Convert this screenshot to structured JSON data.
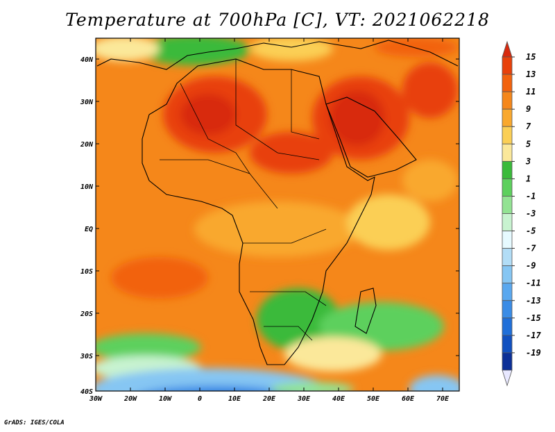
{
  "title": "Temperature at 700hPa [C], VT: 2021062218",
  "credit": "GrADS: IGES/COLA",
  "map": {
    "lon_labels": [
      "30W",
      "20W",
      "10W",
      "0",
      "10E",
      "20E",
      "30E",
      "40E",
      "50E",
      "60E",
      "70E"
    ],
    "lat_labels": [
      "40N",
      "30N",
      "20N",
      "10N",
      "EQ",
      "10S",
      "20S",
      "30S",
      "40S"
    ]
  },
  "colorbar": {
    "labels": [
      "15",
      "13",
      "11",
      "9",
      "7",
      "5",
      "3",
      "1",
      "-1",
      "-3",
      "-5",
      "-7",
      "-9",
      "-11",
      "-13",
      "-15",
      "-17",
      "-19"
    ],
    "colors": [
      "#d82a0e",
      "#e8410a",
      "#f2620d",
      "#f5871a",
      "#f9a82d",
      "#fbcf55",
      "#fbe89a",
      "#3aba3a",
      "#5dd05d",
      "#93e393",
      "#c8f3d0",
      "#e6faff",
      "#b2ddf6",
      "#86c6f3",
      "#5aa8ef",
      "#3a8ce6",
      "#1f6fd9",
      "#1050c0",
      "#0b2f97",
      "#060f6b"
    ]
  }
}
